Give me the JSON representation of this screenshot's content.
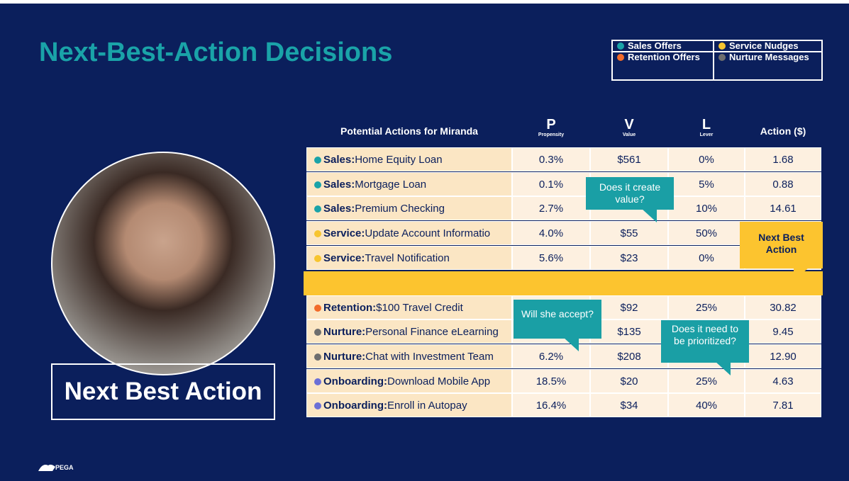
{
  "header": {
    "title": "Next-Best-Action Decisions"
  },
  "legend": [
    {
      "label": "Sales Offers",
      "color": "#1aa3a8"
    },
    {
      "label": "Service Nudges",
      "color": "#f7c52f"
    },
    {
      "label": "Retention Offers",
      "color": "#f26b2a"
    },
    {
      "label": "Nurture Messages",
      "color": "#6e6e6e"
    }
  ],
  "table": {
    "columns": [
      {
        "title": "Potential Actions for Miranda"
      },
      {
        "title": "P",
        "subtitle": "Propensity"
      },
      {
        "title": "V",
        "subtitle": "Value"
      },
      {
        "title": "L",
        "subtitle": "Lever"
      },
      {
        "title": "Action ($)"
      }
    ],
    "rows": [
      {
        "color": "#1aa3a8",
        "category": "Sales:",
        "name": "Home Equity Loan",
        "cells": [
          "0.3%",
          "$561",
          "0%",
          "1.68"
        ]
      },
      {
        "color": "#1aa3a8",
        "category": "Sales:",
        "name": "Mortgage Loan",
        "cells": [
          "0.1%",
          null,
          "5%",
          "0.88"
        ]
      },
      {
        "color": "#1aa3a8",
        "category": "Sales:",
        "name": "Premium Checking",
        "cells": [
          "2.7%",
          null,
          "10%",
          "14.61"
        ]
      },
      {
        "color": "#f7c52f",
        "category": "Service:",
        "name": "Update Account Informatio",
        "cells": [
          "4.0%",
          "$55",
          "50%",
          null
        ]
      },
      {
        "color": "#f7c52f",
        "category": "Service:",
        "name": "Travel Notification",
        "cells": [
          "5.6%",
          "$23",
          "0%",
          null
        ]
      },
      {
        "color": "#f26b2a",
        "category": "Retention:",
        "name": "$100 Travel Credit",
        "cells": [
          null,
          "$92",
          "25%",
          "30.82"
        ]
      },
      {
        "color": "#6e6e6e",
        "category": "Nurture:",
        "name": "Personal Finance eLearning",
        "cells": [
          null,
          "$135",
          null,
          "9.45"
        ]
      },
      {
        "color": "#6e6e6e",
        "category": "Nurture:",
        "name": "Chat with Investment Team",
        "cells": [
          "6.2%",
          "$208",
          null,
          "12.90"
        ]
      },
      {
        "color": "#6b6fd6",
        "category": "Onboarding:",
        "name": "Download Mobile App",
        "cells": [
          "18.5%",
          "$20",
          "25%",
          "4.63"
        ]
      },
      {
        "color": "#6b6fd6",
        "category": "Onboarding:",
        "name": "Enroll in Autopay",
        "cells": [
          "16.4%",
          "$34",
          "40%",
          "7.81"
        ]
      }
    ]
  },
  "callouts": [
    "Does it create value?",
    "Next Best Action",
    "Will she accept?",
    "Does it need to be prioritized?"
  ],
  "profile": {
    "caption": "Next Best Action"
  },
  "footer": {
    "logo": "PEGA"
  }
}
